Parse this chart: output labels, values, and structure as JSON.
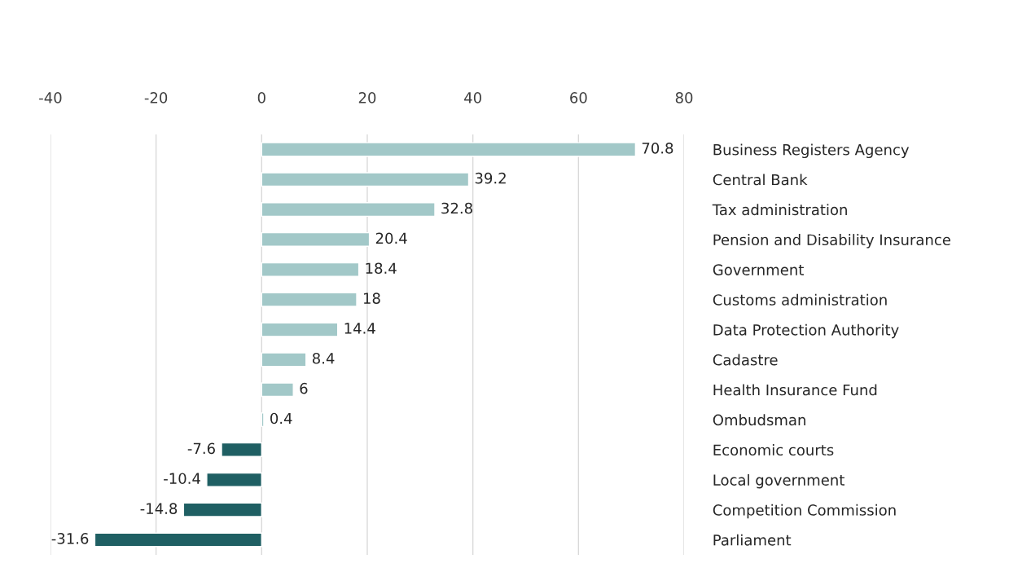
{
  "chart_data": {
    "type": "bar",
    "orientation": "horizontal",
    "categories": [
      "Business Registers Agency",
      "Central Bank",
      "Tax administration",
      "Pension and Disability Insurance",
      "Government",
      "Customs administration",
      "Data Protection Authority",
      "Cadastre",
      "Health Insurance Fund",
      "Ombudsman",
      "Economic courts",
      "Local government",
      "Competition Commission",
      "Parliament"
    ],
    "values": [
      70.8,
      39.2,
      32.8,
      20.4,
      18.4,
      18,
      14.4,
      8.4,
      6,
      0.4,
      -7.6,
      -10.4,
      -14.8,
      -31.6
    ],
    "colors": [
      "#a2c8c8",
      "#a2c8c8",
      "#a2c8c8",
      "#a2c8c8",
      "#a2c8c8",
      "#a2c8c8",
      "#a2c8c8",
      "#a2c8c8",
      "#a2c8c8",
      "#a2c8c8",
      "#1f5f63",
      "#1f5f63",
      "#1f5f63",
      "#1f5f63"
    ],
    "xlim": [
      -40,
      80
    ],
    "xticks": [
      -40,
      -20,
      0,
      20,
      40,
      60,
      80
    ],
    "grid": "x",
    "data_labels": true
  }
}
